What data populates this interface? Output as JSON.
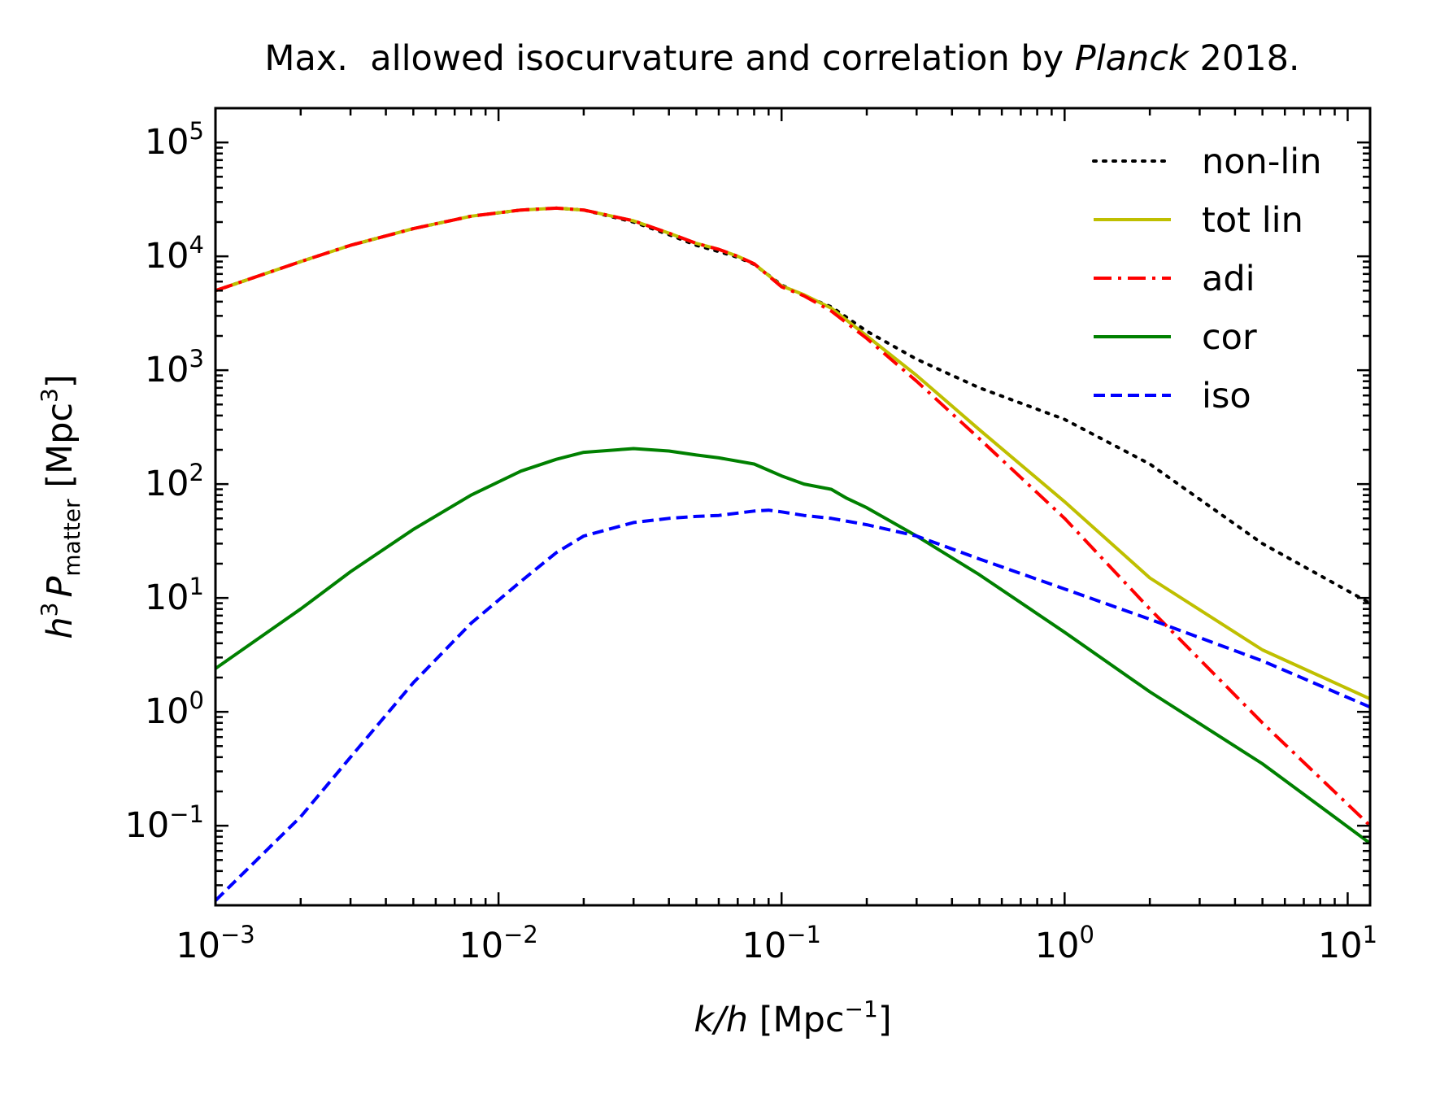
{
  "chart_data": {
    "type": "line",
    "title": {
      "prefix": "Max.  allowed isocurvature and correlation by ",
      "italic": "Planck",
      "suffix": " 2018."
    },
    "xlabel": {
      "var": "k/h",
      "unit_base": "[Mpc",
      "unit_exp": "−1",
      "unit_close": "]"
    },
    "ylabel": {
      "h": "h",
      "h_exp": "3",
      "P": "P",
      "P_sub": "matter",
      "unit_base": "[Mpc",
      "unit_exp": "3",
      "unit_close": "]"
    },
    "x_scale": "log",
    "y_scale": "log",
    "xlim": [
      0.001,
      12
    ],
    "ylim": [
      0.02,
      200000
    ],
    "grid": false,
    "legend_position": "top-right",
    "x_ticks": [
      {
        "value": 0.001,
        "base": "10",
        "exp": "−3"
      },
      {
        "value": 0.01,
        "base": "10",
        "exp": "−2"
      },
      {
        "value": 0.1,
        "base": "10",
        "exp": "−1"
      },
      {
        "value": 1,
        "base": "10",
        "exp": "0"
      },
      {
        "value": 10,
        "base": "10",
        "exp": "1"
      }
    ],
    "y_ticks": [
      {
        "value": 0.1,
        "base": "10",
        "exp": "−1"
      },
      {
        "value": 1,
        "base": "10",
        "exp": "0"
      },
      {
        "value": 10,
        "base": "10",
        "exp": "1"
      },
      {
        "value": 100,
        "base": "10",
        "exp": "2"
      },
      {
        "value": 1000,
        "base": "10",
        "exp": "3"
      },
      {
        "value": 10000,
        "base": "10",
        "exp": "4"
      },
      {
        "value": 100000,
        "base": "10",
        "exp": "5"
      }
    ],
    "series": [
      {
        "name": "non-lin",
        "color": "#000000",
        "style": "dotted",
        "x": [
          0.001,
          0.002,
          0.003,
          0.005,
          0.008,
          0.012,
          0.016,
          0.02,
          0.03,
          0.04,
          0.05,
          0.06,
          0.07,
          0.08,
          0.1,
          0.12,
          0.15,
          0.2,
          0.3,
          0.5,
          1,
          2,
          5,
          12
        ],
        "y": [
          5000,
          9000,
          12500,
          17500,
          22500,
          25500,
          26500,
          25500,
          20000,
          15500,
          12500,
          11000,
          9800,
          8500,
          5600,
          4500,
          3600,
          2200,
          1250,
          700,
          370,
          150,
          30,
          9
        ]
      },
      {
        "name": "tot lin",
        "color": "#bfbf00",
        "style": "solid",
        "x": [
          0.001,
          0.002,
          0.003,
          0.005,
          0.008,
          0.012,
          0.016,
          0.02,
          0.03,
          0.04,
          0.05,
          0.06,
          0.07,
          0.08,
          0.1,
          0.12,
          0.15,
          0.2,
          0.3,
          0.5,
          1,
          2,
          5,
          12
        ],
        "y": [
          5000,
          9000,
          12500,
          17500,
          22500,
          25500,
          26500,
          25500,
          20500,
          16000,
          13000,
          11500,
          10000,
          8600,
          5500,
          4600,
          3500,
          2000,
          900,
          300,
          70,
          15,
          3.5,
          1.3
        ]
      },
      {
        "name": "adi",
        "color": "#ff0000",
        "style": "dashdot",
        "x": [
          0.001,
          0.002,
          0.003,
          0.005,
          0.008,
          0.012,
          0.016,
          0.02,
          0.03,
          0.04,
          0.05,
          0.06,
          0.07,
          0.08,
          0.1,
          0.12,
          0.15,
          0.2,
          0.3,
          0.5,
          1,
          2,
          5,
          12
        ],
        "y": [
          5000,
          9000,
          12500,
          17500,
          22500,
          25500,
          26500,
          25500,
          20500,
          16000,
          13000,
          11500,
          10000,
          8600,
          5400,
          4500,
          3300,
          1900,
          800,
          250,
          50,
          8,
          0.8,
          0.1
        ]
      },
      {
        "name": "cor",
        "color": "#008000",
        "style": "solid",
        "x": [
          0.001,
          0.002,
          0.003,
          0.005,
          0.008,
          0.012,
          0.016,
          0.02,
          0.03,
          0.04,
          0.05,
          0.06,
          0.08,
          0.1,
          0.12,
          0.15,
          0.17,
          0.2,
          0.3,
          0.5,
          1,
          2,
          5,
          12
        ],
        "y": [
          2.4,
          8,
          17,
          40,
          80,
          130,
          165,
          190,
          205,
          195,
          180,
          170,
          150,
          118,
          100,
          90,
          75,
          62,
          35,
          16,
          5,
          1.5,
          0.35,
          0.07
        ]
      },
      {
        "name": "iso",
        "color": "#0000ff",
        "style": "dashed",
        "x": [
          0.001,
          0.002,
          0.003,
          0.005,
          0.008,
          0.012,
          0.016,
          0.02,
          0.03,
          0.04,
          0.05,
          0.06,
          0.08,
          0.09,
          0.1,
          0.12,
          0.15,
          0.2,
          0.3,
          0.5,
          1,
          2,
          5,
          12
        ],
        "y": [
          0.022,
          0.12,
          0.4,
          1.8,
          6,
          14,
          25,
          35,
          46,
          50,
          52,
          53,
          58,
          59,
          57,
          53,
          50,
          44,
          35,
          22,
          12,
          6.5,
          2.8,
          1.1
        ]
      }
    ]
  }
}
